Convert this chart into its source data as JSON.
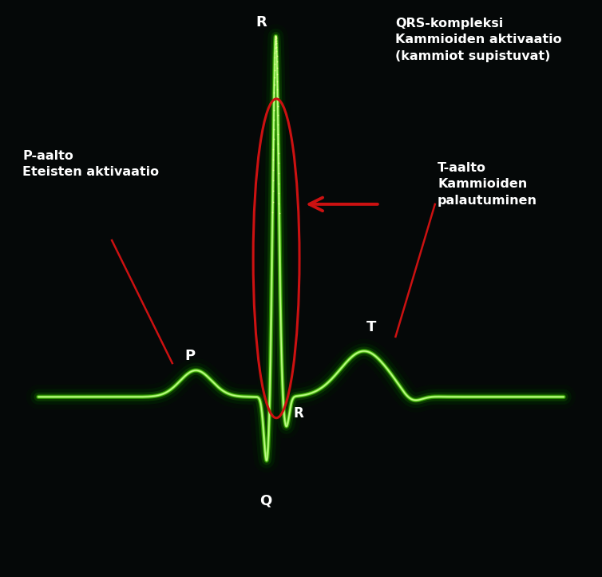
{
  "bg_color": "#050808",
  "ecg_color_outer": "#44dd00",
  "ecg_color_glow1": "#003300",
  "ecg_color_glow2": "#115500",
  "ecg_color_mid": "#88ee22",
  "ecg_color_inner": "#e0ffb0",
  "ecg_color_top": "#ffffff",
  "ellipse_color": "#cc1111",
  "arrow_color": "#cc1111",
  "pointer_color": "#cc1111",
  "text_color": "#ffffff",
  "label_R_top": "R",
  "label_R_bot": "R",
  "label_Q": "Q",
  "label_P": "P",
  "label_T": "T",
  "text_qrs": "QRS-kompleksi\nKammioiden aktivaatio\n(kammiot supistuvat)",
  "text_p": "P-aalto\nEteisten aktivaatio",
  "text_t": "T-aalto\nKammioiden\npalautuminen",
  "figsize": [
    7.54,
    7.23
  ],
  "dpi": 100,
  "xlim": [
    -0.5,
    10.5
  ],
  "ylim": [
    -1.4,
    3.2
  ]
}
